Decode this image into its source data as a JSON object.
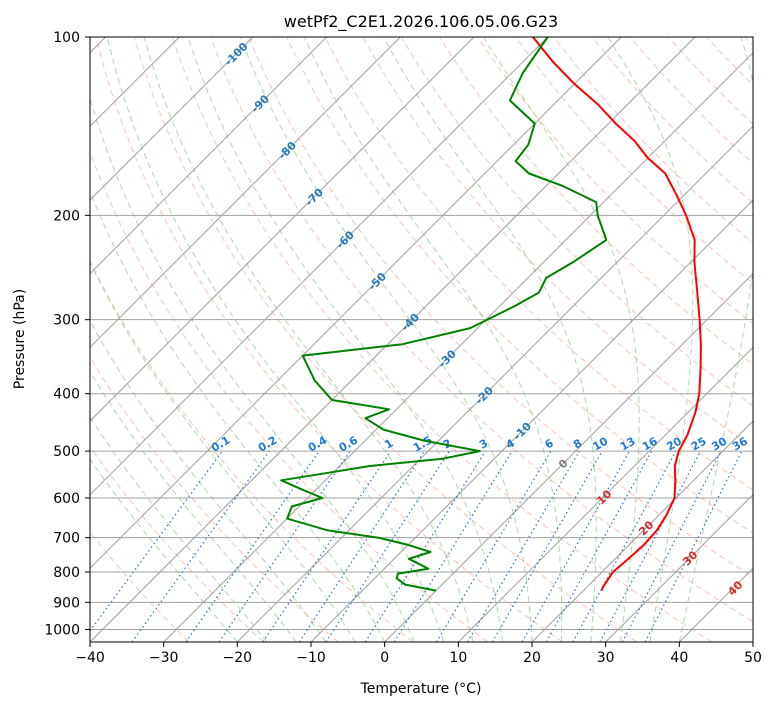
{
  "chart_data": {
    "type": "line",
    "title": "wetPf2_C2E1.2026.106.05.06.G23",
    "xlabel": "Temperature (°C)",
    "ylabel": "Pressure (hPa)",
    "xlim": [
      -40,
      50
    ],
    "ylim": [
      1050,
      100
    ],
    "skew": 1.0,
    "x_ticks": [
      -40,
      -30,
      -20,
      -10,
      0,
      10,
      20,
      30,
      40,
      50
    ],
    "x_tick_labels": [
      "−40",
      "−30",
      "−20",
      "−10",
      "0",
      "10",
      "20",
      "30",
      "40",
      "50"
    ],
    "y_ticks": [
      100,
      200,
      300,
      400,
      500,
      600,
      700,
      800,
      900,
      1000
    ],
    "y_tick_labels": [
      "100",
      "200",
      "300",
      "400",
      "500",
      "600",
      "700",
      "800",
      "900",
      "1000"
    ],
    "colors": {
      "temperature": "#ff0000",
      "dewpoint": "#008000",
      "isotherm": "#a0a0a0",
      "dry_adiabat": "#ffb39a",
      "moist_adiabat": "#9cd39c",
      "mixing_ratio": "#1f77d4",
      "isotherm_label": "#2a7ab8",
      "adiabat_label": "#d42a2a",
      "zero_label": "#808080",
      "highlight_line": "#d9c5a8"
    },
    "series": [
      {
        "name": "Temperature",
        "color": "#ff0000",
        "points": [
          [
            860,
            22.5
          ],
          [
            850,
            22.2
          ],
          [
            800,
            21.5
          ],
          [
            760,
            21.8
          ],
          [
            720,
            22.0
          ],
          [
            680,
            21.8
          ],
          [
            640,
            21.0
          ],
          [
            600,
            19.8
          ],
          [
            560,
            17.5
          ],
          [
            530,
            15.5
          ],
          [
            500,
            14.0
          ],
          [
            470,
            13.0
          ],
          [
            430,
            11.0
          ],
          [
            400,
            9.0
          ],
          [
            360,
            5.5
          ],
          [
            330,
            2.5
          ],
          [
            300,
            -1.0
          ],
          [
            270,
            -5.0
          ],
          [
            240,
            -9.5
          ],
          [
            220,
            -12.5
          ],
          [
            200,
            -17.0
          ],
          [
            185,
            -21.0
          ],
          [
            170,
            -25.5
          ],
          [
            160,
            -30.0
          ],
          [
            150,
            -34.0
          ],
          [
            140,
            -39.0
          ],
          [
            130,
            -44.0
          ],
          [
            120,
            -50.0
          ],
          [
            110,
            -56.0
          ],
          [
            100,
            -62.0
          ]
        ]
      },
      {
        "name": "Dewpoint",
        "color": "#008000",
        "points": [
          [
            860,
            0.0
          ],
          [
            840,
            -5.0
          ],
          [
            820,
            -7.0
          ],
          [
            805,
            -7.5
          ],
          [
            790,
            -4.0
          ],
          [
            760,
            -8.0
          ],
          [
            740,
            -6.0
          ],
          [
            720,
            -10.0
          ],
          [
            700,
            -15.0
          ],
          [
            680,
            -23.0
          ],
          [
            650,
            -30.0
          ],
          [
            620,
            -31.0
          ],
          [
            600,
            -28.0
          ],
          [
            580,
            -32.0
          ],
          [
            560,
            -36.0
          ],
          [
            545,
            -31.0
          ],
          [
            530,
            -26.0
          ],
          [
            515,
            -17.0
          ],
          [
            500,
            -13.0
          ],
          [
            480,
            -22.0
          ],
          [
            460,
            -29.0
          ],
          [
            440,
            -33.0
          ],
          [
            425,
            -31.0
          ],
          [
            410,
            -40.0
          ],
          [
            380,
            -45.0
          ],
          [
            345,
            -50.0
          ],
          [
            330,
            -38.0
          ],
          [
            310,
            -31.0
          ],
          [
            285,
            -28.0
          ],
          [
            270,
            -26.5
          ],
          [
            255,
            -27.5
          ],
          [
            240,
            -26.0
          ],
          [
            220,
            -24.5
          ],
          [
            200,
            -29.0
          ],
          [
            190,
            -31.0
          ],
          [
            178,
            -38.0
          ],
          [
            170,
            -44.0
          ],
          [
            162,
            -47.5
          ],
          [
            152,
            -48.0
          ],
          [
            140,
            -50.0
          ],
          [
            128,
            -56.5
          ],
          [
            115,
            -58.5
          ],
          [
            100,
            -60.0
          ]
        ]
      }
    ],
    "isotherm_labels": [
      "-100",
      "-90",
      "-80",
      "-70",
      "-60",
      "-50",
      "-40",
      "-30",
      "-20",
      "-10",
      "0"
    ],
    "dry_adiabat_labels": [
      "10",
      "20",
      "30",
      "40"
    ],
    "mixing_ratio_labels": [
      "0.1",
      "0.2",
      "0.4",
      "0.6",
      "1",
      "1.5",
      "2",
      "3",
      "4",
      "6",
      "8",
      "10",
      "13",
      "16",
      "20",
      "25",
      "30",
      "36"
    ]
  }
}
